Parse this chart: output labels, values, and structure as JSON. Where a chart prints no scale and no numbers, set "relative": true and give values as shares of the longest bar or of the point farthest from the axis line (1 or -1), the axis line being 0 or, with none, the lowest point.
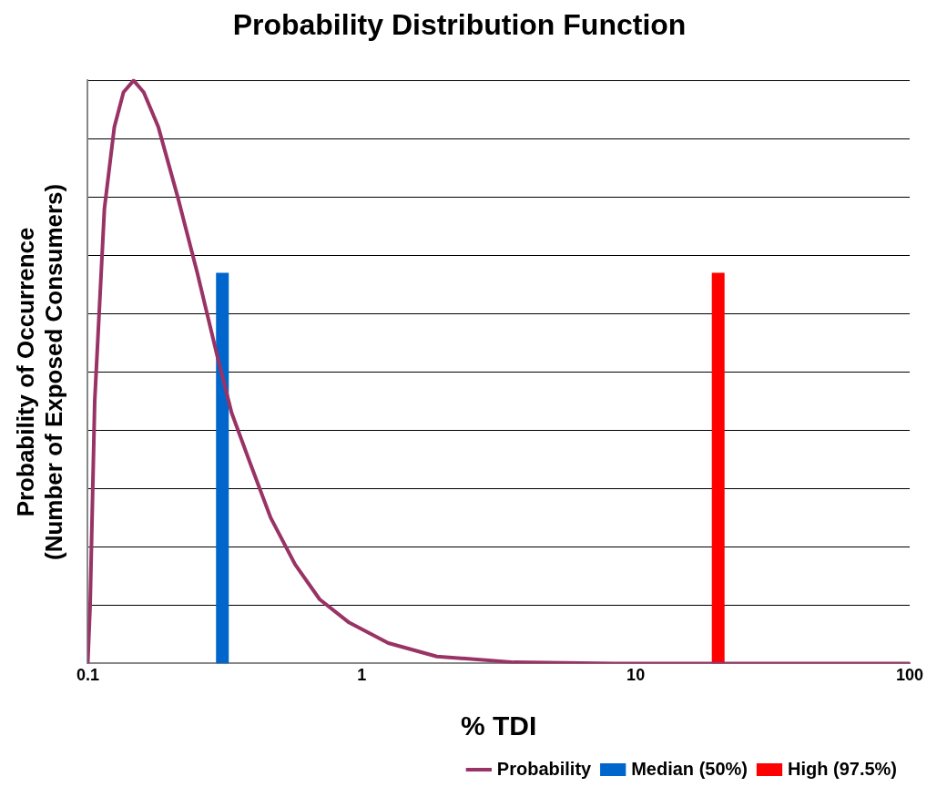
{
  "chart_data": {
    "type": "line",
    "title": "Probability Distribution Function",
    "xlabel": "% TDI",
    "ylabel": "Probability of Occurrence\n(Number of Exposed Consumers)",
    "relative": true,
    "log": "x",
    "xlim": [
      0.1,
      100
    ],
    "xticks": [
      0.1,
      1,
      10,
      100
    ],
    "grid": "y",
    "legend": "bottom right",
    "marker": "none",
    "line_style": "solid",
    "series": [
      {
        "name": "Probability",
        "color": "#993366",
        "x": [
          0.1,
          0.102,
          0.106,
          0.115,
          0.125,
          0.135,
          0.147,
          0.16,
          0.181,
          0.213,
          0.251,
          0.296,
          0.335,
          0.394,
          0.465,
          0.571,
          0.702,
          0.9,
          1.25,
          1.88,
          3.6,
          8.3,
          100
        ],
        "values": [
          0,
          0.1,
          0.45,
          0.78,
          0.92,
          0.98,
          1,
          0.98,
          0.92,
          0.8,
          0.67,
          0.53,
          0.43,
          0.34,
          0.25,
          0.17,
          0.11,
          0.07,
          0.035,
          0.012,
          0.002,
          0,
          0
        ]
      },
      {
        "name": "Median (50%)",
        "color": "#0066cc",
        "x": [
          0.31,
          0.31
        ],
        "values": [
          0,
          0.67
        ]
      },
      {
        "name": "High (97.5%)",
        "color": "#ff0000",
        "x": [
          20,
          20
        ],
        "values": [
          0,
          0.67
        ]
      }
    ]
  }
}
